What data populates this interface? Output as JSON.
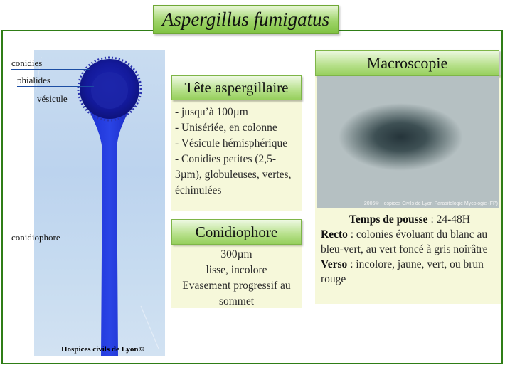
{
  "title": "Aspergillus fumigatus",
  "micrograph": {
    "labels": {
      "conidies": "conidies",
      "phialides": "phialides",
      "vesicule": "vésicule",
      "conidiophore": "conidiophore"
    },
    "credit": "Hospices civils de Lyon©"
  },
  "tete": {
    "heading": "Tête aspergillaire",
    "items": [
      "- jusqu’à 100µm",
      "- Unisériée, en colonne",
      "- Vésicule hémisphérique",
      "- Conidies petites (2,5-3µm), globuleuses, vertes, échinulées"
    ]
  },
  "conidiophore": {
    "heading": "Conidiophore",
    "lines": [
      "300µm",
      "lisse, incolore",
      "Evasement progressif au sommet"
    ]
  },
  "macroscopie": {
    "heading": "Macroscopie",
    "photo_credit": "2006© Hospices Civils de Lyon Parasitologie Mycologie (FP)",
    "temps_label": "Temps de pousse",
    "temps_value": " : 24-48H",
    "recto_label": "Recto",
    "recto_value": " : colonies évoluant du blanc au bleu-vert, au vert foncé à gris noirâtre",
    "verso_label": "Verso",
    "verso_value": " : incolore, jaune, vert, ou brun rouge"
  }
}
